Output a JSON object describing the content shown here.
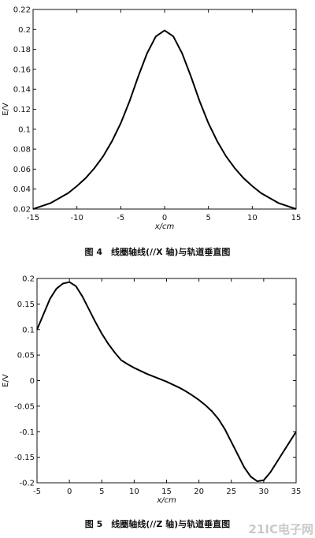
{
  "chart_data": [
    {
      "type": "line",
      "xlabel": "x/cm",
      "ylabel": "E/V",
      "caption": "图 4　线圈轴线(//X 轴)与轨道垂直图",
      "x": [
        -15,
        -14,
        -13,
        -12,
        -11,
        -10,
        -9,
        -8,
        -7,
        -6,
        -5,
        -4,
        -3,
        -2,
        -1,
        0,
        1,
        2,
        3,
        4,
        5,
        6,
        7,
        8,
        9,
        10,
        11,
        12,
        13,
        14,
        15
      ],
      "series": [
        {
          "color": "#000000",
          "values": [
            0.02,
            0.023,
            0.026,
            0.031,
            0.036,
            0.043,
            0.051,
            0.061,
            0.073,
            0.088,
            0.106,
            0.128,
            0.153,
            0.176,
            0.193,
            0.199,
            0.193,
            0.176,
            0.153,
            0.128,
            0.106,
            0.088,
            0.073,
            0.061,
            0.051,
            0.043,
            0.036,
            0.031,
            0.026,
            0.023,
            0.02
          ]
        }
      ],
      "xlim": [
        -15,
        15
      ],
      "xticks": [
        -15,
        -10,
        -5,
        0,
        5,
        10,
        15
      ],
      "ylim": [
        0.02,
        0.22
      ],
      "yticks": [
        0.02,
        0.04,
        0.06,
        0.08,
        0.1,
        0.12,
        0.14,
        0.16,
        0.18,
        0.2,
        0.22
      ]
    },
    {
      "type": "line",
      "xlabel": "x/cm",
      "ylabel": "E/V",
      "caption": "图 5　线圈轴线(//Z 轴)与轨道垂直图",
      "x": [
        -5,
        -4,
        -3,
        -2,
        -1,
        0,
        1,
        2,
        3,
        4,
        5,
        6,
        7,
        8,
        9,
        10,
        11,
        12,
        13,
        14,
        15,
        16,
        17,
        18,
        19,
        20,
        21,
        22,
        23,
        24,
        25,
        26,
        27,
        28,
        29,
        30,
        31,
        32,
        33,
        34,
        35
      ],
      "series": [
        {
          "color": "#000000",
          "values": [
            0.1,
            0.13,
            0.16,
            0.18,
            0.19,
            0.193,
            0.185,
            0.165,
            0.14,
            0.115,
            0.092,
            0.072,
            0.055,
            0.04,
            0.032,
            0.025,
            0.019,
            0.013,
            0.008,
            0.003,
            -0.002,
            -0.008,
            -0.014,
            -0.021,
            -0.029,
            -0.038,
            -0.048,
            -0.06,
            -0.075,
            -0.095,
            -0.12,
            -0.145,
            -0.17,
            -0.188,
            -0.197,
            -0.195,
            -0.18,
            -0.16,
            -0.14,
            -0.12,
            -0.1
          ]
        }
      ],
      "xlim": [
        -5,
        35
      ],
      "xticks": [
        -5,
        0,
        5,
        10,
        15,
        20,
        25,
        30,
        35
      ],
      "ylim": [
        -0.2,
        0.2
      ],
      "yticks": [
        -0.2,
        -0.15,
        -0.1,
        -0.05,
        0,
        0.05,
        0.1,
        0.15,
        0.2
      ]
    }
  ],
  "watermark": "21IC电子网"
}
